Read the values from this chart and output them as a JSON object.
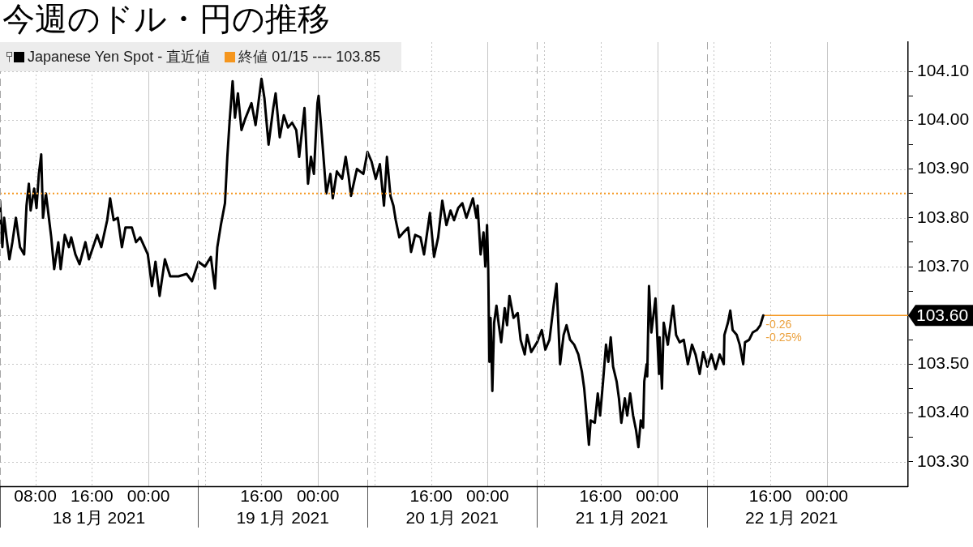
{
  "chart_data": {
    "type": "line",
    "title": "今週のドル・円の推移",
    "series": [
      {
        "name": "Japanese Yen Spot - 直近値",
        "color": "#000000",
        "x": [
          "2021-01-18T03:00",
          "2021-01-18T03:20",
          "2021-01-18T03:35",
          "2021-01-18T03:55",
          "2021-01-18T04:20",
          "2021-01-18T04:45",
          "2021-01-18T05:15",
          "2021-01-18T05:50",
          "2021-01-18T06:25",
          "2021-01-18T06:45",
          "2021-01-18T07:05",
          "2021-01-18T07:20",
          "2021-01-18T07:50",
          "2021-01-18T08:10",
          "2021-01-18T08:30",
          "2021-01-18T08:50",
          "2021-01-18T09:05",
          "2021-01-18T09:30",
          "2021-01-18T09:55",
          "2021-01-18T10:15",
          "2021-01-18T10:40",
          "2021-01-18T11:15",
          "2021-01-18T11:35",
          "2021-01-18T12:10",
          "2021-01-18T12:45",
          "2021-01-18T13:05",
          "2021-01-18T13:40",
          "2021-01-18T14:15",
          "2021-01-18T15:05",
          "2021-01-18T15:35",
          "2021-01-18T16:10",
          "2021-01-18T16:45",
          "2021-01-18T17:20",
          "2021-01-18T18:10",
          "2021-01-18T18:35",
          "2021-01-18T19:05",
          "2021-01-18T19:40",
          "2021-01-18T20:15",
          "2021-01-18T20:45",
          "2021-01-18T21:40",
          "2021-01-18T22:15",
          "2021-01-18T22:50",
          "2021-01-18T23:55",
          "2021-01-19T00:30",
          "2021-01-19T01:00",
          "2021-01-19T01:35",
          "2021-01-19T02:20",
          "2021-01-19T03:05",
          "2021-01-19T04:15",
          "2021-01-19T05:25",
          "2021-01-19T06:10",
          "2021-01-19T07:05",
          "2021-01-19T08:00",
          "2021-01-19T08:50",
          "2021-01-19T09:25",
          "2021-01-19T09:45",
          "2021-01-19T10:15",
          "2021-01-19T10:50",
          "2021-01-19T11:10",
          "2021-01-19T11:30",
          "2021-01-19T11:55",
          "2021-01-19T12:15",
          "2021-01-19T12:40",
          "2021-01-19T13:10",
          "2021-01-19T13:45",
          "2021-01-19T14:35",
          "2021-01-19T15:10",
          "2021-01-19T16:00",
          "2021-01-19T16:25",
          "2021-01-19T17:00",
          "2021-01-19T17:40",
          "2021-01-19T18:00",
          "2021-01-19T18:35",
          "2021-01-19T19:10",
          "2021-01-19T19:45",
          "2021-01-19T20:20",
          "2021-01-19T20:55",
          "2021-01-19T21:20",
          "2021-01-19T22:05",
          "2021-01-19T22:35",
          "2021-01-19T23:00",
          "2021-01-19T23:25",
          "2021-01-19T23:55",
          "2021-01-20T00:05",
          "2021-01-20T00:35",
          "2021-01-20T01:10",
          "2021-01-20T01:45",
          "2021-01-20T02:05",
          "2021-01-20T02:40",
          "2021-01-20T03:25",
          "2021-01-20T03:55",
          "2021-01-20T04:20",
          "2021-01-20T04:40",
          "2021-01-20T05:30",
          "2021-01-20T06:25",
          "2021-01-20T07:00",
          "2021-01-20T07:35",
          "2021-01-20T08:10",
          "2021-01-20T08:45",
          "2021-01-20T09:20",
          "2021-01-20T09:45",
          "2021-01-20T10:15",
          "2021-01-20T10:40",
          "2021-01-20T11:00",
          "2021-01-20T11:30",
          "2021-01-20T12:05",
          "2021-01-20T12:45",
          "2021-01-20T13:10",
          "2021-01-20T13:45",
          "2021-01-20T14:30",
          "2021-01-20T15:00",
          "2021-01-20T15:50",
          "2021-01-20T16:25",
          "2021-01-20T17:00",
          "2021-01-20T17:35",
          "2021-01-20T18:10",
          "2021-01-20T18:45",
          "2021-01-20T19:15",
          "2021-01-20T19:50",
          "2021-01-20T20:25",
          "2021-01-20T21:00",
          "2021-01-20T21:35",
          "2021-01-20T21:55",
          "2021-01-20T22:25",
          "2021-01-20T22:35",
          "2021-01-20T23:00",
          "2021-01-20T23:25",
          "2021-01-20T23:40",
          "2021-01-20T23:55",
          "2021-01-21T00:05",
          "2021-01-21T00:15",
          "2021-01-21T00:25",
          "2021-01-21T00:40",
          "2021-01-21T00:55",
          "2021-01-21T01:15",
          "2021-01-21T01:35",
          "2021-01-21T01:55",
          "2021-01-21T02:25",
          "2021-01-21T02:45",
          "2021-01-21T03:05",
          "2021-01-21T03:40",
          "2021-01-21T04:15",
          "2021-01-21T04:40",
          "2021-01-21T05:15",
          "2021-01-21T05:35",
          "2021-01-21T06:10",
          "2021-01-21T07:00",
          "2021-01-21T07:40",
          "2021-01-21T08:10",
          "2021-01-21T08:45",
          "2021-01-21T09:20",
          "2021-01-21T09:45",
          "2021-01-21T10:00",
          "2021-01-21T10:15",
          "2021-01-21T10:45",
          "2021-01-21T11:10",
          "2021-01-21T11:40",
          "2021-01-21T12:15",
          "2021-01-21T12:50",
          "2021-01-21T13:20",
          "2021-01-21T13:40",
          "2021-01-21T14:00",
          "2021-01-21T14:20",
          "2021-01-21T14:35",
          "2021-01-21T15:10",
          "2021-01-21T15:35",
          "2021-01-21T15:55",
          "2021-01-21T16:20",
          "2021-01-21T16:45",
          "2021-01-21T17:05",
          "2021-01-21T17:25",
          "2021-01-21T17:45",
          "2021-01-21T18:15",
          "2021-01-21T18:35",
          "2021-01-21T18:55",
          "2021-01-21T19:25",
          "2021-01-21T19:45",
          "2021-01-21T20:10",
          "2021-01-21T20:35",
          "2021-01-21T21:00",
          "2021-01-21T21:20",
          "2021-01-21T21:40",
          "2021-01-21T22:00",
          "2021-01-21T22:10",
          "2021-01-21T22:30",
          "2021-01-21T22:35",
          "2021-01-21T22:50",
          "2021-01-21T23:10",
          "2021-01-21T23:45",
          "2021-01-22T00:15",
          "2021-01-22T00:20",
          "2021-01-22T00:40",
          "2021-01-22T00:55",
          "2021-01-22T01:30",
          "2021-01-22T02:05",
          "2021-01-22T02:15",
          "2021-01-22T02:40",
          "2021-01-22T03:10",
          "2021-01-22T03:45",
          "2021-01-22T04:20",
          "2021-01-22T04:55",
          "2021-01-22T05:25",
          "2021-01-22T06:00",
          "2021-01-22T06:30",
          "2021-01-22T07:05",
          "2021-01-22T07:40",
          "2021-01-22T08:15",
          "2021-01-22T08:50",
          "2021-01-22T09:25",
          "2021-01-22T09:30",
          "2021-01-22T10:00",
          "2021-01-22T10:20",
          "2021-01-22T10:40",
          "2021-01-22T11:15",
          "2021-01-22T11:40",
          "2021-01-22T12:10",
          "2021-01-22T12:25",
          "2021-01-22T13:00",
          "2021-01-22T13:30",
          "2021-01-22T14:05",
          "2021-01-22T14:35",
          "2021-01-22T15:00"
        ],
        "values": [
          103.835,
          103.74,
          103.8,
          103.76,
          103.715,
          103.75,
          103.8,
          103.74,
          103.725,
          103.825,
          103.87,
          103.815,
          103.86,
          103.82,
          103.89,
          103.93,
          103.8,
          103.85,
          103.8,
          103.76,
          103.695,
          103.75,
          103.695,
          103.765,
          103.74,
          103.76,
          103.725,
          103.705,
          103.75,
          103.715,
          103.74,
          103.765,
          103.74,
          103.795,
          103.84,
          103.795,
          103.8,
          103.74,
          103.78,
          103.78,
          103.75,
          103.76,
          103.725,
          103.66,
          103.71,
          103.64,
          103.715,
          103.68,
          103.68,
          103.685,
          103.67,
          103.71,
          103.7,
          103.72,
          103.655,
          103.74,
          103.785,
          103.83,
          103.925,
          104.0,
          104.08,
          104.005,
          104.055,
          103.98,
          104.005,
          104.035,
          103.99,
          104.085,
          104.045,
          103.95,
          104.025,
          104.055,
          103.965,
          104.01,
          103.985,
          103.995,
          103.98,
          103.925,
          104.025,
          103.87,
          103.925,
          103.89,
          104.035,
          104.05,
          103.96,
          103.85,
          103.89,
          103.84,
          103.895,
          103.88,
          103.925,
          103.885,
          103.845,
          103.9,
          103.89,
          103.935,
          103.915,
          103.88,
          103.91,
          103.825,
          103.925,
          103.845,
          103.825,
          103.795,
          103.76,
          103.77,
          103.78,
          103.73,
          103.765,
          103.76,
          103.725,
          103.81,
          103.72,
          103.76,
          103.835,
          103.785,
          103.815,
          103.795,
          103.82,
          103.83,
          103.8,
          103.825,
          103.84,
          103.8,
          103.825,
          103.725,
          103.77,
          103.7,
          103.785,
          103.695,
          103.505,
          103.595,
          103.445,
          103.585,
          103.62,
          103.58,
          103.545,
          103.615,
          103.58,
          103.64,
          103.595,
          103.605,
          103.55,
          103.52,
          103.56,
          103.525,
          103.545,
          103.57,
          103.53,
          103.55,
          103.62,
          103.665,
          103.585,
          103.5,
          103.56,
          103.58,
          103.55,
          103.54,
          103.52,
          103.485,
          103.45,
          103.395,
          103.335,
          103.385,
          103.38,
          103.44,
          103.395,
          103.465,
          103.54,
          103.505,
          103.555,
          103.495,
          103.465,
          103.43,
          103.38,
          103.43,
          103.395,
          103.44,
          103.395,
          103.365,
          103.33,
          103.385,
          103.37,
          103.465,
          103.5,
          103.475,
          103.66,
          103.565,
          103.635,
          103.48,
          103.555,
          103.45,
          103.585,
          103.54,
          103.605,
          103.62,
          103.56,
          103.545,
          103.55,
          103.5,
          103.54,
          103.52,
          103.48,
          103.525,
          103.495,
          103.52,
          103.49,
          103.52,
          103.5,
          103.56,
          103.585,
          103.61,
          103.57,
          103.56,
          103.54,
          103.5,
          103.545,
          103.55,
          103.565,
          103.57,
          103.58,
          103.6
        ]
      },
      {
        "color": "#f5961e",
        "x": [
          "2021-01-22T15:00",
          "2021-01-23T11:30"
        ],
        "values": [
          103.6,
          103.6
        ],
        "value_labels": [
          null,
          "103.60"
        ]
      }
    ],
    "xlim": [
      "2021-01-18T03:00",
      "2021-01-23T11:30"
    ],
    "xticks": [
      {
        "value": "2021-01-18T08:00",
        "label": "08:00"
      },
      {
        "value": "2021-01-18T16:00",
        "label": "16:00"
      },
      {
        "value": "2021-01-19T00:00",
        "label": "00:00"
      },
      {
        "value": "2021-01-19T08:00",
        "label": null
      },
      {
        "value": "2021-01-19T16:00",
        "label": "16:00"
      },
      {
        "value": "2021-01-20T00:00",
        "label": "00:00"
      },
      {
        "value": "2021-01-20T08:00",
        "label": null
      },
      {
        "value": "2021-01-20T16:00",
        "label": "16:00"
      },
      {
        "value": "2021-01-21T00:00",
        "label": "00:00"
      },
      {
        "value": "2021-01-21T08:00",
        "label": null
      },
      {
        "value": "2021-01-21T16:00",
        "label": "16:00"
      },
      {
        "value": "2021-01-22T00:00",
        "label": "00:00"
      },
      {
        "value": "2021-01-22T08:00",
        "label": null
      },
      {
        "value": "2021-01-22T16:00",
        "label": "16:00"
      },
      {
        "value": "2021-01-23T00:00",
        "label": "00:00"
      }
    ],
    "x2lim": [
      "2021-01-18T03:00",
      "2021-01-23T11:30"
    ],
    "x2ticks": [
      {
        "value": "2021-01-18T17:00",
        "label": "18 1月 2021"
      },
      {
        "value": "2021-01-19T19:00",
        "label": "19 1月 2021"
      },
      {
        "value": "2021-01-20T19:00",
        "label": "20 1月 2021"
      },
      {
        "value": "2021-01-21T19:00",
        "label": "21 1月 2021"
      },
      {
        "value": "2021-01-22T19:00",
        "label": "22 1月 2021"
      }
    ],
    "ylim": [
      103.25,
      104.16
    ],
    "yticks": [
      {
        "value": 103.3,
        "label": "103.30"
      },
      {
        "value": 103.35,
        "label": null
      },
      {
        "value": 103.4,
        "label": "103.40"
      },
      {
        "value": 103.45,
        "label": null
      },
      {
        "value": 103.5,
        "label": "103.50"
      },
      {
        "value": 103.55,
        "label": null
      },
      {
        "value": 103.6,
        "label": "103.60"
      },
      {
        "value": 103.65,
        "label": null
      },
      {
        "value": 103.7,
        "label": "103.70"
      },
      {
        "value": 103.75,
        "label": null
      },
      {
        "value": 103.8,
        "label": "103.80"
      },
      {
        "value": 103.85,
        "label": null
      },
      {
        "value": 103.9,
        "label": "103.90"
      },
      {
        "value": 103.95,
        "label": null
      },
      {
        "value": 104.0,
        "label": "104.00"
      },
      {
        "value": 104.05,
        "label": null
      },
      {
        "value": 104.1,
        "label": "104.10"
      }
    ],
    "ref_lines": [
      {
        "axis": "y",
        "value": 103.85,
        "label": "終値 01/15 ---- 103.85",
        "color": "#f5961e",
        "line_style": "dotted"
      },
      {
        "axis": "x",
        "value": "2021-01-19T07:00",
        "color": "#a6a6a6",
        "line_style": "dashed"
      },
      {
        "axis": "x",
        "value": "2021-01-20T07:00",
        "color": "#a6a6a6",
        "line_style": "dashed"
      },
      {
        "axis": "x",
        "value": "2021-01-21T07:00",
        "color": "#a6a6a6",
        "line_style": "dashed"
      },
      {
        "axis": "x",
        "value": "2021-01-22T07:00",
        "color": "#a6a6a6",
        "line_style": "dashed"
      }
    ],
    "annotations": [
      {
        "text": "-0.26",
        "x": "2021-01-22T15:00",
        "y": 103.6
      },
      {
        "text": "-0.25%",
        "x": "2021-01-22T15:00",
        "y": 103.6
      }
    ],
    "grid": true,
    "legend": "top left"
  }
}
